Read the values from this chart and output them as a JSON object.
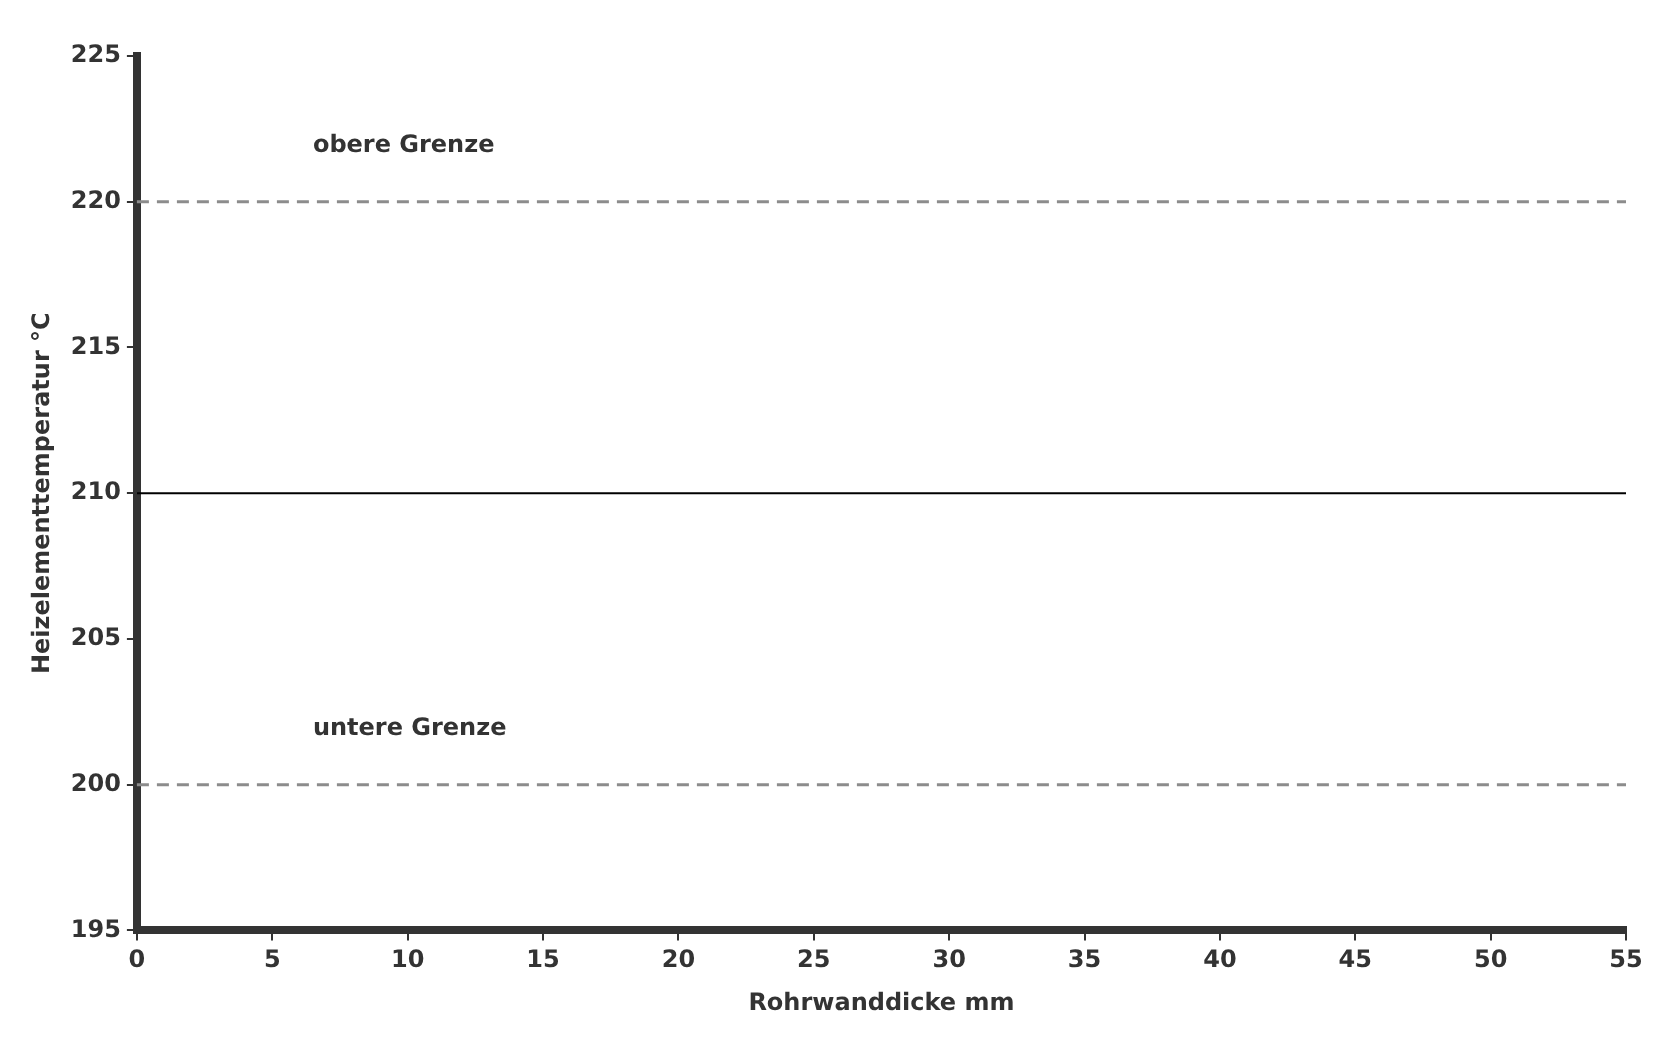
{
  "chart_data": {
    "type": "line",
    "xlabel": "Rohrwanddicke mm",
    "ylabel": "Heizelementtemperatur °C",
    "xlim": [
      0,
      55
    ],
    "xticks": [
      0,
      5,
      10,
      15,
      20,
      25,
      30,
      35,
      40,
      45,
      50,
      55
    ],
    "ylim": [
      195,
      225
    ],
    "yticks": [
      195,
      200,
      205,
      210,
      215,
      220,
      225
    ],
    "series": [
      {
        "x": [
          0,
          55
        ],
        "values": [
          210,
          210
        ],
        "color": "#000000"
      }
    ],
    "ref_lines": [
      {
        "axis": "y",
        "value": 220,
        "label": "obere Grenze",
        "color": "#8c8c8c",
        "line_style": "dashed"
      },
      {
        "axis": "y",
        "value": 200,
        "label": "untere Grenze",
        "color": "#8c8c8c",
        "line_style": "dashed"
      }
    ],
    "grid": false,
    "legend": false,
    "marker": "none",
    "line_style": "solid"
  }
}
